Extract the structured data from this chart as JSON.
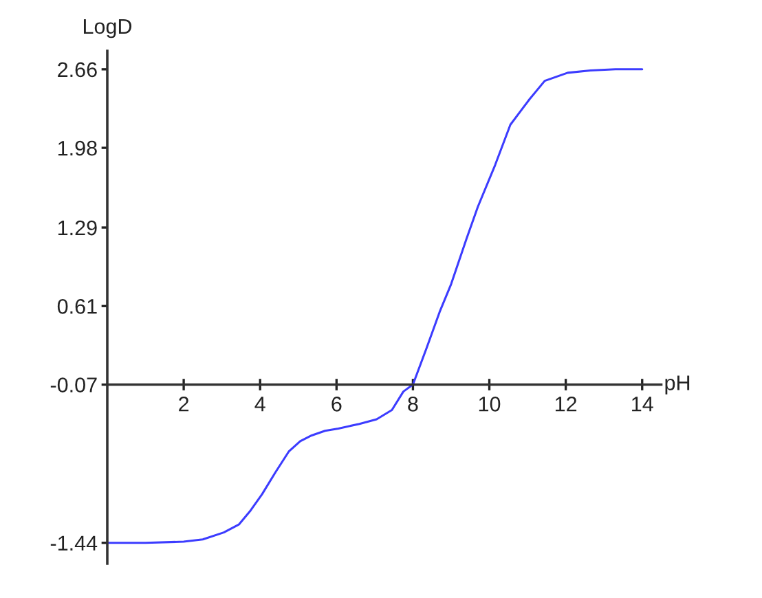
{
  "chart_data": {
    "type": "line",
    "xlabel": "pH",
    "ylabel": "LogD",
    "x": [
      0,
      1,
      2,
      2.5,
      3.05,
      3.45,
      3.75,
      4.05,
      4.4,
      4.75,
      5.05,
      5.35,
      5.7,
      6.05,
      6.6,
      7.05,
      7.45,
      7.75,
      8.0,
      8.35,
      8.7,
      9.0,
      9.4,
      9.7,
      10.15,
      10.55,
      11.05,
      11.45,
      12.05,
      12.65,
      13.3,
      14.0
    ],
    "series": [
      {
        "color": "#3c3cff",
        "values": [
          -1.44,
          -1.44,
          -1.43,
          -1.41,
          -1.35,
          -1.28,
          -1.16,
          -1.02,
          -0.83,
          -0.65,
          -0.56,
          -0.51,
          -0.47,
          -0.45,
          -0.41,
          -0.37,
          -0.29,
          -0.13,
          -0.07,
          0.24,
          0.56,
          0.8,
          1.19,
          1.47,
          1.83,
          2.18,
          2.4,
          2.56,
          2.63,
          2.65,
          2.66,
          2.66
        ]
      }
    ],
    "xlim": [
      0,
      14.5
    ],
    "ylim": [
      -1.62,
      2.82
    ],
    "xticks": [
      2,
      4,
      6,
      8,
      10,
      12,
      14
    ],
    "yticks": [
      2.66,
      1.98,
      1.29,
      0.61,
      -0.07,
      -1.44
    ]
  }
}
